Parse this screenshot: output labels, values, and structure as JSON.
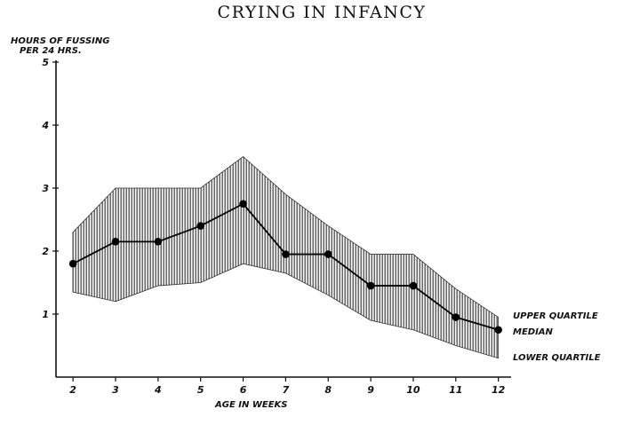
{
  "chart_data": {
    "type": "line",
    "title": "CRYING IN INFANCY",
    "ylabel_line1": "HOURS OF FUSSING",
    "ylabel_line2": "PER 24 HRS.",
    "xlabel": "AGE IN WEEKS",
    "x": [
      2,
      3,
      4,
      5,
      6,
      7,
      8,
      9,
      10,
      11,
      12
    ],
    "xlim": [
      1.6,
      12.3
    ],
    "ylim": [
      0,
      5
    ],
    "yticks": [
      1,
      2,
      3,
      4,
      5
    ],
    "series": [
      {
        "name": "MEDIAN",
        "values": [
          1.8,
          2.15,
          2.15,
          2.4,
          2.75,
          1.95,
          1.95,
          1.45,
          1.45,
          0.95,
          0.75
        ]
      },
      {
        "name": "UPPER QUARTILE",
        "values": [
          2.3,
          3.0,
          3.0,
          3.0,
          3.5,
          2.9,
          2.4,
          1.95,
          1.95,
          1.4,
          0.95
        ]
      },
      {
        "name": "LOWER QUARTILE",
        "values": [
          1.35,
          1.2,
          1.45,
          1.5,
          1.8,
          1.65,
          1.3,
          0.9,
          0.75,
          0.5,
          0.3
        ]
      }
    ],
    "legend_position": "right",
    "grid": false
  }
}
